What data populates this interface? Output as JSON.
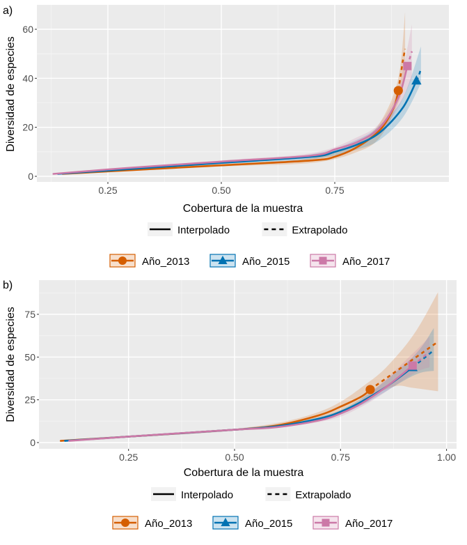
{
  "chart_data": [
    {
      "panel": "a)",
      "type": "line",
      "xlabel": "Cobertura de la muestra",
      "ylabel": "Diversidad de especies",
      "xlim": [
        0.12,
        0.96
      ],
      "ylim": [
        -2,
        70
      ],
      "xticks": [
        0.25,
        0.5,
        0.75
      ],
      "xtick_labels": [
        "0.25",
        "0.50",
        "0.75"
      ],
      "yticks": [
        0,
        20,
        40,
        60
      ],
      "ytick_labels": [
        "0",
        "20",
        "40",
        "60"
      ],
      "grid": true,
      "legend_linetype": [
        "Interpolado",
        "Extrapolado"
      ],
      "legend_position": "bottom",
      "series": [
        {
          "name": "Año_2013",
          "color": "#D55E00",
          "marker": "circle",
          "interpolated": [
            [
              0.15,
              1
            ],
            [
              0.3,
              2.5
            ],
            [
              0.5,
              4.5
            ],
            [
              0.7,
              6.5
            ],
            [
              0.75,
              8
            ],
            [
              0.8,
              12
            ],
            [
              0.85,
              19
            ],
            [
              0.88,
              28
            ],
            [
              0.89,
              35
            ]
          ],
          "extrapolated": [
            [
              0.89,
              35
            ],
            [
              0.895,
              41
            ],
            [
              0.9,
              47
            ],
            [
              0.905,
              52
            ]
          ],
          "lower": [
            [
              0.15,
              0.8
            ],
            [
              0.5,
              4
            ],
            [
              0.7,
              5.5
            ],
            [
              0.8,
              10
            ],
            [
              0.85,
              16
            ],
            [
              0.89,
              30
            ],
            [
              0.905,
              40
            ]
          ],
          "upper": [
            [
              0.15,
              1.2
            ],
            [
              0.5,
              5
            ],
            [
              0.7,
              7.5
            ],
            [
              0.8,
              14
            ],
            [
              0.85,
              22
            ],
            [
              0.89,
              40
            ],
            [
              0.905,
              67
            ]
          ],
          "reference": [
            0.89,
            35
          ]
        },
        {
          "name": "Año_2015",
          "color": "#0072B2",
          "marker": "triangle",
          "interpolated": [
            [
              0.14,
              1
            ],
            [
              0.3,
              3
            ],
            [
              0.5,
              5.5
            ],
            [
              0.7,
              8
            ],
            [
              0.75,
              10
            ],
            [
              0.8,
              13
            ],
            [
              0.85,
              18
            ],
            [
              0.9,
              28
            ],
            [
              0.93,
              39
            ]
          ],
          "extrapolated": [
            [
              0.93,
              39
            ],
            [
              0.935,
              41
            ],
            [
              0.94,
              44
            ]
          ],
          "lower": [
            [
              0.14,
              0.8
            ],
            [
              0.5,
              5
            ],
            [
              0.7,
              7
            ],
            [
              0.8,
              11
            ],
            [
              0.85,
              15
            ],
            [
              0.9,
              24
            ],
            [
              0.94,
              38
            ]
          ],
          "upper": [
            [
              0.14,
              1.2
            ],
            [
              0.5,
              6
            ],
            [
              0.7,
              9
            ],
            [
              0.8,
              15
            ],
            [
              0.85,
              21
            ],
            [
              0.9,
              32
            ],
            [
              0.94,
              53
            ]
          ],
          "reference": [
            0.93,
            39
          ]
        },
        {
          "name": "Año_2017",
          "color": "#CC79A7",
          "marker": "square",
          "interpolated": [
            [
              0.13,
              1
            ],
            [
              0.3,
              3.5
            ],
            [
              0.5,
              6
            ],
            [
              0.7,
              8.5
            ],
            [
              0.75,
              11
            ],
            [
              0.8,
              14
            ],
            [
              0.85,
              20
            ],
            [
              0.89,
              32
            ],
            [
              0.91,
              45
            ]
          ],
          "extrapolated": [
            [
              0.91,
              45
            ],
            [
              0.915,
              48
            ],
            [
              0.92,
              51
            ]
          ],
          "lower": [
            [
              0.13,
              0.8
            ],
            [
              0.5,
              5.5
            ],
            [
              0.7,
              8
            ],
            [
              0.8,
              12.5
            ],
            [
              0.85,
              18
            ],
            [
              0.89,
              28
            ],
            [
              0.92,
              40
            ]
          ],
          "upper": [
            [
              0.13,
              1.2
            ],
            [
              0.5,
              6.5
            ],
            [
              0.7,
              9.5
            ],
            [
              0.8,
              16
            ],
            [
              0.85,
              22
            ],
            [
              0.89,
              36
            ],
            [
              0.92,
              62
            ]
          ],
          "reference": [
            0.91,
            45
          ]
        }
      ]
    },
    {
      "panel": "b)",
      "type": "line",
      "xlabel": "Cobertura de la muestra",
      "ylabel": "Diversidad de especies",
      "xlim": [
        0.06,
        1.02
      ],
      "ylim": [
        -3,
        95
      ],
      "xticks": [
        0.25,
        0.5,
        0.75,
        1.0
      ],
      "xtick_labels": [
        "0.25",
        "0.50",
        "0.75",
        "1.00"
      ],
      "yticks": [
        0,
        25,
        50,
        75
      ],
      "ytick_labels": [
        "0",
        "25",
        "50",
        "75"
      ],
      "grid": true,
      "legend_linetype": [
        "Interpolado",
        "Extrapolado"
      ],
      "legend_position": "bottom",
      "series": [
        {
          "name": "Año_2013",
          "color": "#D55E00",
          "marker": "circle",
          "interpolated": [
            [
              0.09,
              1
            ],
            [
              0.25,
              3.5
            ],
            [
              0.5,
              7.5
            ],
            [
              0.6,
              10
            ],
            [
              0.7,
              16
            ],
            [
              0.75,
              21
            ],
            [
              0.8,
              27
            ],
            [
              0.82,
              31
            ]
          ],
          "extrapolated": [
            [
              0.82,
              31
            ],
            [
              0.86,
              38
            ],
            [
              0.9,
              45
            ],
            [
              0.94,
              52
            ],
            [
              0.98,
              59
            ]
          ],
          "lower": [
            [
              0.09,
              0.8
            ],
            [
              0.5,
              7
            ],
            [
              0.7,
              14
            ],
            [
              0.82,
              27
            ],
            [
              0.88,
              33
            ],
            [
              0.92,
              32
            ],
            [
              0.98,
              30
            ]
          ],
          "upper": [
            [
              0.09,
              1.2
            ],
            [
              0.5,
              8
            ],
            [
              0.7,
              18
            ],
            [
              0.82,
              36
            ],
            [
              0.88,
              50
            ],
            [
              0.93,
              66
            ],
            [
              0.98,
              88
            ]
          ],
          "reference": [
            0.82,
            31
          ]
        },
        {
          "name": "Año_2015",
          "color": "#0072B2",
          "marker": "triangle",
          "interpolated": [
            [
              0.1,
              1
            ],
            [
              0.25,
              3.5
            ],
            [
              0.5,
              7.5
            ],
            [
              0.6,
              9.5
            ],
            [
              0.7,
              14
            ],
            [
              0.75,
              18
            ],
            [
              0.8,
              24
            ],
            [
              0.86,
              33
            ],
            [
              0.92,
              44
            ]
          ],
          "extrapolated": [
            [
              0.92,
              44
            ],
            [
              0.95,
              50
            ],
            [
              0.97,
              54
            ]
          ],
          "lower": [
            [
              0.1,
              0.8
            ],
            [
              0.5,
              7
            ],
            [
              0.7,
              13
            ],
            [
              0.8,
              22
            ],
            [
              0.92,
              39
            ],
            [
              0.97,
              42
            ]
          ],
          "upper": [
            [
              0.1,
              1.2
            ],
            [
              0.5,
              8
            ],
            [
              0.7,
              15
            ],
            [
              0.8,
              26
            ],
            [
              0.92,
              50
            ],
            [
              0.97,
              67
            ]
          ],
          "reference": [
            0.92,
            44
          ]
        },
        {
          "name": "Año_2017",
          "color": "#CC79A7",
          "marker": "square",
          "interpolated": [
            [
              0.11,
              1
            ],
            [
              0.25,
              3.5
            ],
            [
              0.5,
              7.5
            ],
            [
              0.6,
              9
            ],
            [
              0.7,
              13
            ],
            [
              0.75,
              17
            ],
            [
              0.8,
              23
            ],
            [
              0.86,
              33
            ],
            [
              0.92,
              45
            ]
          ],
          "extrapolated": [
            [
              0.92,
              45
            ],
            [
              0.94,
              49
            ],
            [
              0.96,
              53
            ]
          ],
          "lower": [
            [
              0.11,
              0.8
            ],
            [
              0.5,
              7
            ],
            [
              0.7,
              12
            ],
            [
              0.8,
              21
            ],
            [
              0.92,
              40
            ],
            [
              0.96,
              44
            ]
          ],
          "upper": [
            [
              0.11,
              1.2
            ],
            [
              0.5,
              8
            ],
            [
              0.7,
              14
            ],
            [
              0.8,
              25
            ],
            [
              0.92,
              52
            ],
            [
              0.96,
              62
            ]
          ],
          "reference": [
            0.92,
            45
          ]
        }
      ]
    }
  ]
}
